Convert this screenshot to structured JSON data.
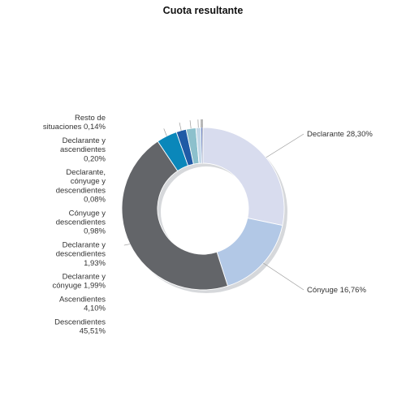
{
  "chart_data": {
    "type": "pie",
    "variant": "donut",
    "title": "Cuota resultante",
    "start": "twelve-o-clock",
    "direction": "clockwise",
    "slices": [
      {
        "name": "Declarante",
        "value": 28.3,
        "label_lines": [
          "Declarante 28,30%"
        ],
        "color": "#d8dcee",
        "side": "right"
      },
      {
        "name": "Cónyuge",
        "value": 16.76,
        "label_lines": [
          "Cónyuge 16,76%"
        ],
        "color": "#b2c8e6",
        "side": "right"
      },
      {
        "name": "Descendientes",
        "value": 45.51,
        "label_lines": [
          "Descendientes",
          "45,51%"
        ],
        "color": "#636569",
        "side": "left"
      },
      {
        "name": "Ascendientes",
        "value": 4.1,
        "label_lines": [
          "Ascendientes",
          "4,10%"
        ],
        "color": "#0a87ba",
        "side": "left"
      },
      {
        "name": "Declarante y cónyuge",
        "value": 1.99,
        "label_lines": [
          "Declarante y",
          "cónyuge 1,99%"
        ],
        "color": "#1f5aa6",
        "side": "left"
      },
      {
        "name": "Declarante y descendientes",
        "value": 1.93,
        "label_lines": [
          "Declarante y",
          "descendientes",
          "1,93%"
        ],
        "color": "#8cc0cc",
        "side": "left"
      },
      {
        "name": "Cónyuge y descendientes",
        "value": 0.98,
        "label_lines": [
          "Cónyuge y",
          "descendientes",
          "0,98%"
        ],
        "color": "#c3d8e8",
        "side": "left"
      },
      {
        "name": "Declarante, cónyuge y descendientes",
        "value": 0.08,
        "label_lines": [
          "Declarante,",
          "cónyuge y",
          "descendientes",
          "0,08%"
        ],
        "color": "#7a9ec4",
        "side": "left"
      },
      {
        "name": "Declarante y ascendientes",
        "value": 0.2,
        "label_lines": [
          "Declarante y",
          "ascendientes",
          "0,20%"
        ],
        "color": "#2646a6",
        "side": "left"
      },
      {
        "name": "Resto de situaciones",
        "value": 0.14,
        "label_lines": [
          "Resto de",
          "situaciones 0,14%"
        ],
        "color": "#888c94",
        "side": "left"
      }
    ]
  }
}
